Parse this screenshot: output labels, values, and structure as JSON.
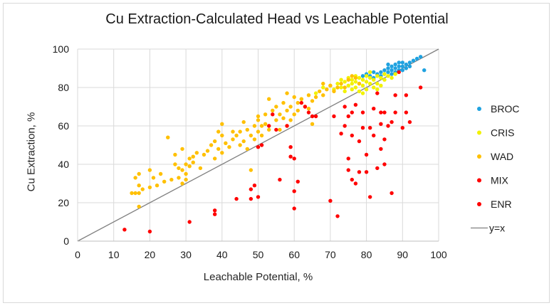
{
  "chart_data": {
    "type": "scatter",
    "title": "Cu Extraction-Calculated Head vs Leachable Potential",
    "xlabel": "Leachable Potential, %",
    "ylabel": "Cu Extraction, %",
    "xlim": [
      0,
      100
    ],
    "ylim": [
      0,
      100
    ],
    "xticks": [
      0,
      10,
      20,
      30,
      40,
      50,
      60,
      70,
      80,
      90,
      100
    ],
    "yticks": [
      0,
      20,
      40,
      60,
      80,
      100
    ],
    "grid": true,
    "legend_position": "right",
    "series": [
      {
        "name": "BROC",
        "color": "#1fa2e0",
        "points": [
          [
            79,
            86
          ],
          [
            80,
            87
          ],
          [
            81,
            86
          ],
          [
            82,
            88
          ],
          [
            83,
            87
          ],
          [
            84,
            88
          ],
          [
            85,
            89
          ],
          [
            85,
            87
          ],
          [
            86,
            90
          ],
          [
            86,
            88
          ],
          [
            87,
            89
          ],
          [
            87,
            91
          ],
          [
            88,
            90
          ],
          [
            88,
            92
          ],
          [
            89,
            91
          ],
          [
            89,
            89
          ],
          [
            90,
            93
          ],
          [
            90,
            91
          ],
          [
            91,
            92
          ],
          [
            91,
            90
          ],
          [
            92,
            93
          ],
          [
            92,
            91
          ],
          [
            93,
            94
          ],
          [
            94,
            95
          ],
          [
            95,
            96
          ],
          [
            96,
            89
          ],
          [
            88,
            88
          ],
          [
            84,
            86
          ],
          [
            82,
            85
          ],
          [
            86,
            92
          ],
          [
            89,
            93
          ],
          [
            90,
            89
          ],
          [
            87,
            87
          ]
        ]
      },
      {
        "name": "CRIS",
        "color": "#f2f200",
        "points": [
          [
            62,
            74
          ],
          [
            66,
            77
          ],
          [
            68,
            80
          ],
          [
            70,
            81
          ],
          [
            71,
            79
          ],
          [
            72,
            82
          ],
          [
            73,
            80
          ],
          [
            74,
            83
          ],
          [
            74,
            78
          ],
          [
            75,
            85
          ],
          [
            75,
            81
          ],
          [
            76,
            84
          ],
          [
            76,
            79
          ],
          [
            77,
            83
          ],
          [
            77,
            80
          ],
          [
            78,
            85
          ],
          [
            78,
            82
          ],
          [
            78,
            78
          ],
          [
            79,
            84
          ],
          [
            79,
            81
          ],
          [
            80,
            86
          ],
          [
            80,
            83
          ],
          [
            80,
            79
          ],
          [
            81,
            85
          ],
          [
            81,
            82
          ],
          [
            82,
            84
          ],
          [
            82,
            80
          ],
          [
            83,
            86
          ],
          [
            83,
            82
          ],
          [
            84,
            85
          ],
          [
            84,
            81
          ],
          [
            85,
            87
          ],
          [
            85,
            84
          ],
          [
            86,
            86
          ],
          [
            87,
            85
          ],
          [
            88,
            87
          ],
          [
            76,
            82
          ],
          [
            79,
            77
          ],
          [
            83,
            79
          ],
          [
            77,
            86
          ],
          [
            81,
            88
          ],
          [
            73,
            84
          ]
        ]
      },
      {
        "name": "WAD",
        "color": "#ffc000",
        "points": [
          [
            15,
            25
          ],
          [
            16,
            25
          ],
          [
            17,
            25
          ],
          [
            16,
            33
          ],
          [
            17,
            35
          ],
          [
            17,
            29
          ],
          [
            18,
            27
          ],
          [
            17,
            18
          ],
          [
            20,
            37
          ],
          [
            20,
            28
          ],
          [
            21,
            33
          ],
          [
            22,
            29
          ],
          [
            23,
            35
          ],
          [
            24,
            31
          ],
          [
            25,
            54
          ],
          [
            26,
            32
          ],
          [
            27,
            40
          ],
          [
            27,
            45
          ],
          [
            28,
            38
          ],
          [
            28,
            33
          ],
          [
            29,
            48
          ],
          [
            29,
            37
          ],
          [
            29,
            30
          ],
          [
            30,
            40
          ],
          [
            30,
            35
          ],
          [
            30,
            32
          ],
          [
            31,
            43
          ],
          [
            31,
            39
          ],
          [
            32,
            44
          ],
          [
            32,
            41
          ],
          [
            33,
            46
          ],
          [
            34,
            38
          ],
          [
            35,
            45
          ],
          [
            36,
            47
          ],
          [
            37,
            50
          ],
          [
            38,
            43
          ],
          [
            38,
            52
          ],
          [
            39,
            48
          ],
          [
            40,
            55
          ],
          [
            40,
            61
          ],
          [
            40,
            46
          ],
          [
            41,
            51
          ],
          [
            42,
            49
          ],
          [
            43,
            53
          ],
          [
            44,
            55
          ],
          [
            45,
            50
          ],
          [
            45,
            57
          ],
          [
            46,
            52
          ],
          [
            46,
            62
          ],
          [
            47,
            48
          ],
          [
            47,
            58
          ],
          [
            48,
            55
          ],
          [
            48,
            37
          ],
          [
            49,
            60
          ],
          [
            49,
            53
          ],
          [
            50,
            63
          ],
          [
            50,
            57
          ],
          [
            50,
            65
          ],
          [
            51,
            60
          ],
          [
            51,
            55
          ],
          [
            52,
            66
          ],
          [
            52,
            61
          ],
          [
            53,
            74
          ],
          [
            53,
            58
          ],
          [
            54,
            68
          ],
          [
            55,
            63
          ],
          [
            55,
            70
          ],
          [
            56,
            66
          ],
          [
            56,
            58
          ],
          [
            57,
            64
          ],
          [
            57,
            72
          ],
          [
            58,
            60
          ],
          [
            58,
            68
          ],
          [
            59,
            70
          ],
          [
            59,
            63
          ],
          [
            60,
            66
          ],
          [
            60,
            75
          ],
          [
            61,
            68
          ],
          [
            61,
            72
          ],
          [
            62,
            74
          ],
          [
            63,
            70
          ],
          [
            64,
            76
          ],
          [
            65,
            73
          ],
          [
            66,
            75
          ],
          [
            67,
            78
          ],
          [
            68,
            76
          ],
          [
            68,
            82
          ],
          [
            69,
            79
          ],
          [
            70,
            81
          ],
          [
            71,
            78
          ],
          [
            72,
            80
          ],
          [
            73,
            82
          ],
          [
            74,
            80
          ],
          [
            75,
            84
          ],
          [
            76,
            86
          ],
          [
            77,
            85
          ],
          [
            78,
            82
          ],
          [
            43,
            57
          ],
          [
            39,
            57
          ],
          [
            64,
            69
          ],
          [
            65,
            61
          ],
          [
            58,
            77
          ]
        ]
      },
      {
        "name": "MIX",
        "color": "#ff0000",
        "points": [
          [
            13,
            6
          ],
          [
            20,
            5
          ],
          [
            31,
            10
          ],
          [
            38,
            16
          ],
          [
            38,
            14
          ],
          [
            44,
            22
          ],
          [
            48,
            22
          ],
          [
            48,
            27
          ],
          [
            49,
            29
          ],
          [
            50,
            49
          ],
          [
            50,
            23
          ],
          [
            51,
            50
          ],
          [
            53,
            60
          ],
          [
            54,
            66
          ],
          [
            55,
            58
          ],
          [
            56,
            32
          ],
          [
            58,
            60
          ],
          [
            59,
            49
          ],
          [
            59,
            44
          ],
          [
            60,
            43
          ],
          [
            60,
            26
          ],
          [
            60,
            17
          ],
          [
            61,
            31
          ],
          [
            62,
            72
          ],
          [
            63,
            70
          ],
          [
            64,
            67
          ],
          [
            65,
            65
          ],
          [
            66,
            65
          ],
          [
            70,
            21
          ],
          [
            71,
            65
          ],
          [
            72,
            13
          ],
          [
            73,
            56
          ],
          [
            74,
            60
          ],
          [
            74,
            70
          ],
          [
            75,
            37
          ],
          [
            75,
            43
          ],
          [
            75,
            65
          ],
          [
            76,
            32
          ],
          [
            76,
            55
          ],
          [
            76,
            67
          ],
          [
            77,
            71
          ],
          [
            77,
            30
          ],
          [
            78,
            52
          ],
          [
            78,
            36
          ],
          [
            79,
            67
          ],
          [
            79,
            59
          ],
          [
            80,
            45
          ],
          [
            80,
            36
          ],
          [
            81,
            23
          ],
          [
            81,
            59
          ],
          [
            82,
            55
          ],
          [
            82,
            69
          ],
          [
            83,
            38
          ],
          [
            83,
            77
          ],
          [
            84,
            48
          ],
          [
            84,
            67
          ],
          [
            84,
            61
          ],
          [
            85,
            53
          ],
          [
            85,
            40
          ],
          [
            85,
            67
          ],
          [
            86,
            60
          ],
          [
            87,
            62
          ],
          [
            87,
            25
          ],
          [
            88,
            76
          ],
          [
            88,
            67
          ],
          [
            89,
            88
          ],
          [
            90,
            59
          ],
          [
            91,
            67
          ],
          [
            91,
            76
          ],
          [
            92,
            62
          ],
          [
            95,
            80
          ]
        ]
      },
      {
        "name": "ENR",
        "color": "#ff0000",
        "points": []
      },
      {
        "name": "y=x",
        "color": "#808080",
        "line": [
          [
            0,
            0
          ],
          [
            100,
            100
          ]
        ]
      }
    ]
  }
}
